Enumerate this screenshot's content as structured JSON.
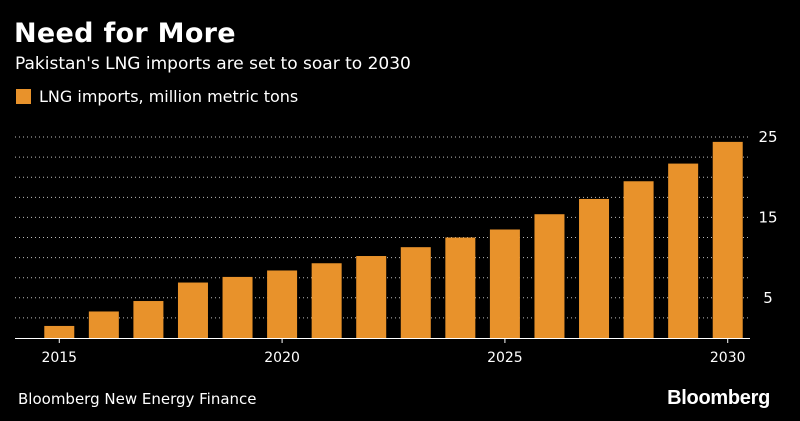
{
  "header": {
    "title": "Need for More",
    "subtitle": "Pakistan's LNG imports are set to soar to 2030"
  },
  "legend": {
    "label": "LNG imports, million metric tons"
  },
  "footer": {
    "source": "Bloomberg New Energy Finance",
    "brand": "Bloomberg"
  },
  "colors": {
    "bar": "#e8922b",
    "background": "#000000",
    "grid": "#bbbbbb",
    "text": "#ffffff"
  },
  "chart_data": {
    "type": "bar",
    "categories": [
      "2015",
      "2016",
      "2017",
      "2018",
      "2019",
      "2020",
      "2021",
      "2022",
      "2023",
      "2024",
      "2025",
      "2026",
      "2027",
      "2028",
      "2029",
      "2030"
    ],
    "series": [
      {
        "name": "LNG imports, million metric tons",
        "values": [
          1.5,
          3.3,
          4.6,
          6.9,
          7.6,
          8.4,
          9.3,
          10.2,
          11.3,
          12.5,
          13.5,
          15.4,
          17.3,
          19.5,
          21.7,
          24.4
        ]
      }
    ],
    "x_tick_labels": [
      "2015",
      "2020",
      "2025",
      "2030"
    ],
    "y_tick_labels": [
      "5",
      "15",
      "25"
    ],
    "ylim": [
      0,
      26.5
    ],
    "grid": true,
    "y_axis_position": "right",
    "legend_position": "top-left"
  }
}
